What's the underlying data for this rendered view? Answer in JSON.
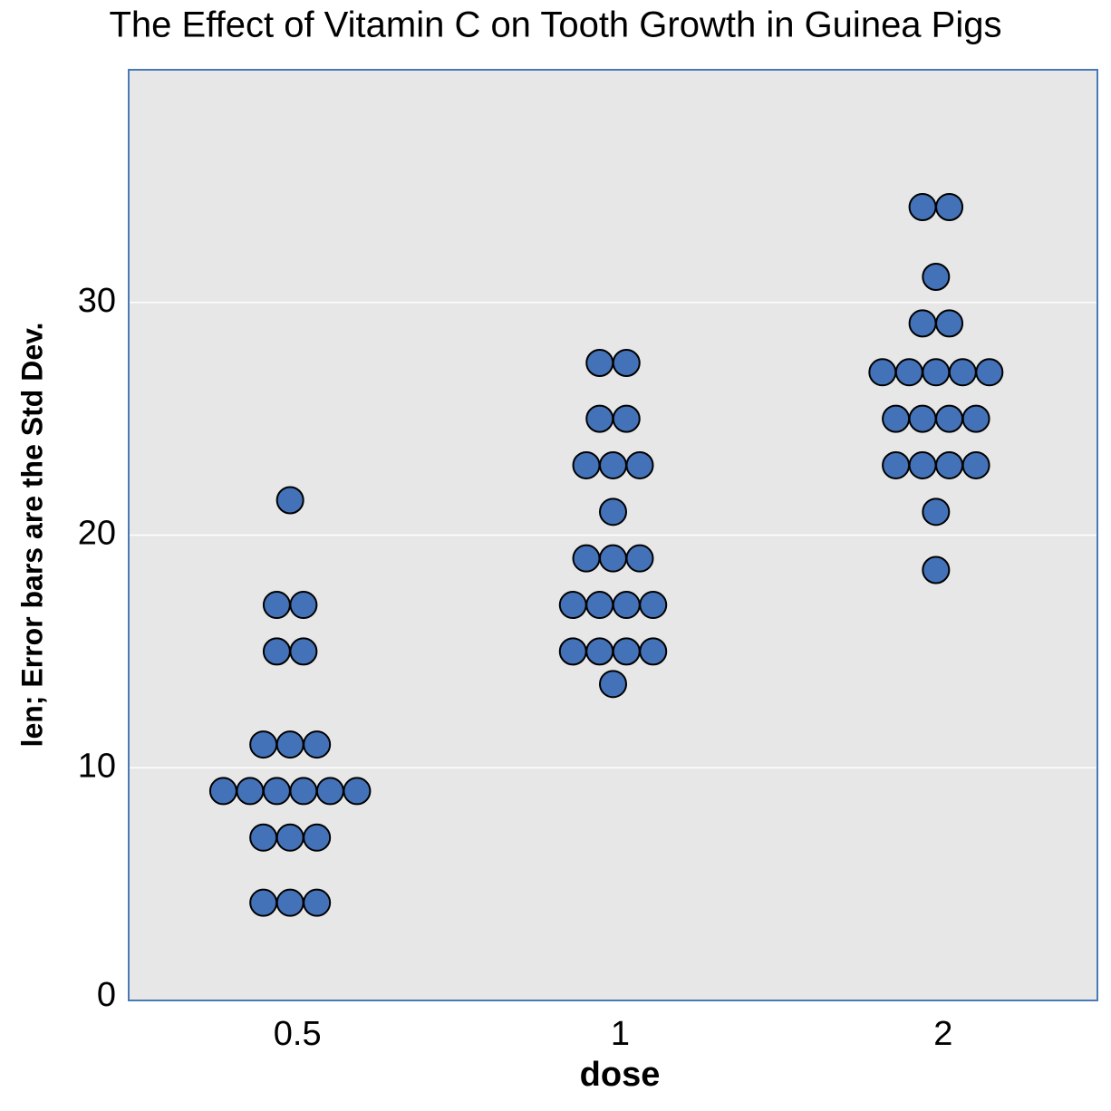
{
  "chart_data": {
    "type": "dotplot",
    "title": "The Effect of Vitamin C on Tooth Growth in Guinea Pigs",
    "x_label": "dose",
    "y_label": "len; Error bars are the Std Dev.",
    "categories": [
      "0.5",
      "1",
      "2"
    ],
    "values": [
      [
        21.5,
        17,
        17,
        15,
        15,
        11,
        11,
        11,
        9,
        9,
        9,
        9,
        9,
        9,
        7,
        7,
        7,
        4.2,
        4.2,
        4.2
      ],
      [
        27.4,
        27.4,
        25,
        25,
        23,
        23,
        23,
        21,
        19,
        19,
        19,
        17,
        17,
        17,
        17,
        15,
        15,
        15,
        15,
        13.6
      ],
      [
        34.1,
        34.1,
        31.1,
        29.1,
        29.1,
        27,
        27,
        27,
        27,
        27,
        25,
        25,
        25,
        25,
        23,
        23,
        23,
        23,
        21,
        18.5
      ]
    ],
    "color": "#4472b8",
    "ylim": [
      0,
      40
    ],
    "yticks": [
      0,
      10,
      20,
      30
    ],
    "grid": true
  }
}
